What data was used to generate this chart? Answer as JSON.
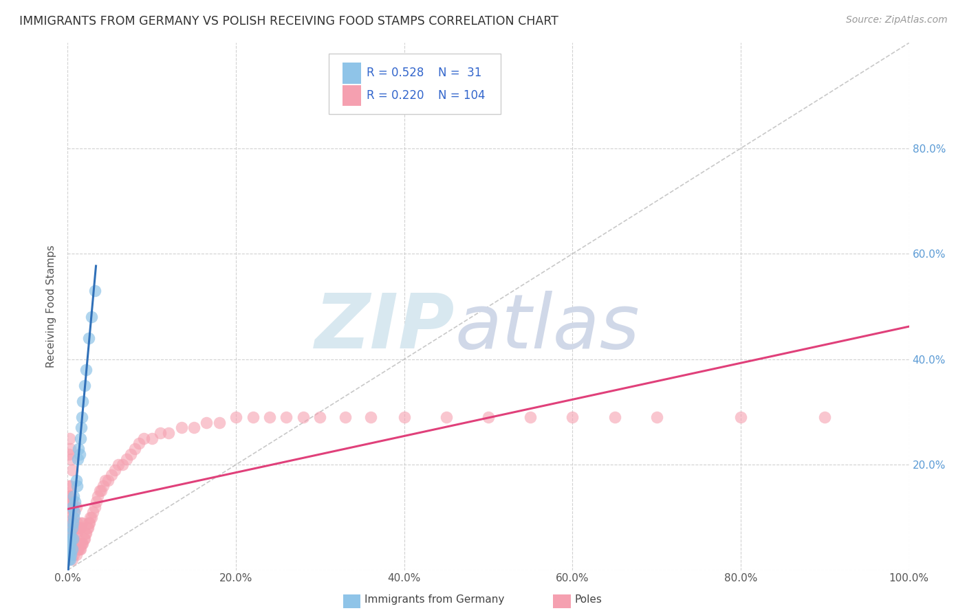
{
  "title": "IMMIGRANTS FROM GERMANY VS POLISH RECEIVING FOOD STAMPS CORRELATION CHART",
  "source": "Source: ZipAtlas.com",
  "ylabel": "Receiving Food Stamps",
  "xlim": [
    0,
    1.0
  ],
  "ylim": [
    0,
    1.0
  ],
  "xticks": [
    0.0,
    0.2,
    0.4,
    0.6,
    0.8,
    1.0
  ],
  "yticks": [
    0.0,
    0.2,
    0.4,
    0.6,
    0.8
  ],
  "xticklabels": [
    "0.0%",
    "20.0%",
    "40.0%",
    "60.0%",
    "80.0%",
    "100.0%"
  ],
  "yticklabels_right": [
    "",
    "20.0%",
    "40.0%",
    "60.0%",
    "80.0%"
  ],
  "legend_R1": "0.528",
  "legend_N1": " 31",
  "legend_R2": "0.220",
  "legend_N2": "104",
  "color_germany": "#8fc4e8",
  "color_poland": "#f5a0b0",
  "trendline_color_germany": "#3070b8",
  "trendline_color_poland": "#e0407a",
  "germany_x": [
    0.001,
    0.002,
    0.002,
    0.003,
    0.003,
    0.003,
    0.004,
    0.004,
    0.005,
    0.005,
    0.005,
    0.006,
    0.006,
    0.007,
    0.007,
    0.008,
    0.009,
    0.01,
    0.011,
    0.012,
    0.013,
    0.014,
    0.015,
    0.016,
    0.017,
    0.018,
    0.02,
    0.022,
    0.025,
    0.028,
    0.032
  ],
  "germany_y": [
    0.02,
    0.03,
    0.04,
    0.02,
    0.05,
    0.07,
    0.03,
    0.06,
    0.04,
    0.08,
    0.12,
    0.06,
    0.09,
    0.1,
    0.14,
    0.11,
    0.13,
    0.17,
    0.16,
    0.21,
    0.23,
    0.22,
    0.25,
    0.27,
    0.29,
    0.32,
    0.35,
    0.38,
    0.44,
    0.48,
    0.53
  ],
  "poland_x": [
    0.001,
    0.001,
    0.001,
    0.002,
    0.002,
    0.002,
    0.002,
    0.003,
    0.003,
    0.003,
    0.003,
    0.004,
    0.004,
    0.004,
    0.004,
    0.005,
    0.005,
    0.005,
    0.005,
    0.006,
    0.006,
    0.006,
    0.007,
    0.007,
    0.007,
    0.008,
    0.008,
    0.008,
    0.009,
    0.009,
    0.01,
    0.01,
    0.01,
    0.011,
    0.011,
    0.012,
    0.012,
    0.013,
    0.013,
    0.014,
    0.014,
    0.015,
    0.015,
    0.016,
    0.016,
    0.017,
    0.017,
    0.018,
    0.019,
    0.02,
    0.021,
    0.022,
    0.023,
    0.024,
    0.025,
    0.026,
    0.027,
    0.028,
    0.03,
    0.032,
    0.034,
    0.036,
    0.038,
    0.04,
    0.042,
    0.045,
    0.048,
    0.052,
    0.056,
    0.06,
    0.065,
    0.07,
    0.075,
    0.08,
    0.085,
    0.09,
    0.1,
    0.11,
    0.12,
    0.135,
    0.15,
    0.165,
    0.18,
    0.2,
    0.22,
    0.24,
    0.26,
    0.28,
    0.3,
    0.33,
    0.36,
    0.4,
    0.45,
    0.5,
    0.55,
    0.6,
    0.65,
    0.7,
    0.8,
    0.9,
    0.002,
    0.003,
    0.004,
    0.005
  ],
  "poland_y": [
    0.14,
    0.12,
    0.22,
    0.06,
    0.1,
    0.14,
    0.16,
    0.04,
    0.08,
    0.12,
    0.16,
    0.04,
    0.07,
    0.1,
    0.14,
    0.02,
    0.06,
    0.09,
    0.13,
    0.04,
    0.08,
    0.12,
    0.03,
    0.06,
    0.1,
    0.04,
    0.07,
    0.11,
    0.04,
    0.08,
    0.03,
    0.07,
    0.12,
    0.04,
    0.09,
    0.04,
    0.08,
    0.04,
    0.08,
    0.04,
    0.08,
    0.04,
    0.08,
    0.05,
    0.09,
    0.05,
    0.09,
    0.05,
    0.06,
    0.06,
    0.07,
    0.07,
    0.08,
    0.08,
    0.09,
    0.09,
    0.1,
    0.1,
    0.11,
    0.12,
    0.13,
    0.14,
    0.15,
    0.15,
    0.16,
    0.17,
    0.17,
    0.18,
    0.19,
    0.2,
    0.2,
    0.21,
    0.22,
    0.23,
    0.24,
    0.25,
    0.25,
    0.26,
    0.26,
    0.27,
    0.27,
    0.28,
    0.28,
    0.29,
    0.29,
    0.29,
    0.29,
    0.29,
    0.29,
    0.29,
    0.29,
    0.29,
    0.29,
    0.29,
    0.29,
    0.29,
    0.29,
    0.29,
    0.29,
    0.29,
    0.25,
    0.23,
    0.21,
    0.19
  ]
}
